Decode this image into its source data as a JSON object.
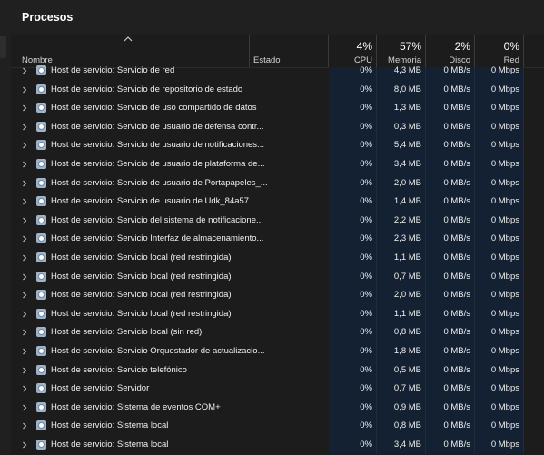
{
  "title": "Procesos",
  "header": {
    "name_label": "Nombre",
    "estado_label": "Estado",
    "cpu": {
      "percent": "4%",
      "label": "CPU"
    },
    "memoria": {
      "percent": "57%",
      "label": "Memoria"
    },
    "disco": {
      "percent": "2%",
      "label": "Disco"
    },
    "red": {
      "percent": "0%",
      "label": "Red"
    }
  },
  "processes": [
    {
      "name": "Host de servicio: Servicio de red",
      "cpu": "0%",
      "mem": "4,3 MB",
      "disk": "0 MB/s",
      "net": "0 Mbps"
    },
    {
      "name": "Host de servicio: Servicio de repositorio de estado",
      "cpu": "0%",
      "mem": "8,0 MB",
      "disk": "0 MB/s",
      "net": "0 Mbps"
    },
    {
      "name": "Host de servicio: Servicio de uso compartido de datos",
      "cpu": "0%",
      "mem": "1,3 MB",
      "disk": "0 MB/s",
      "net": "0 Mbps"
    },
    {
      "name": "Host de servicio: Servicio de usuario de defensa contr...",
      "cpu": "0%",
      "mem": "0,3 MB",
      "disk": "0 MB/s",
      "net": "0 Mbps"
    },
    {
      "name": "Host de servicio: Servicio de usuario de notificaciones...",
      "cpu": "0%",
      "mem": "5,4 MB",
      "disk": "0 MB/s",
      "net": "0 Mbps"
    },
    {
      "name": "Host de servicio: Servicio de usuario de plataforma de...",
      "cpu": "0%",
      "mem": "3,4 MB",
      "disk": "0 MB/s",
      "net": "0 Mbps"
    },
    {
      "name": "Host de servicio: Servicio de usuario de Portapapeles_...",
      "cpu": "0%",
      "mem": "2,0 MB",
      "disk": "0 MB/s",
      "net": "0 Mbps"
    },
    {
      "name": "Host de servicio: Servicio de usuario de Udk_84a57",
      "cpu": "0%",
      "mem": "1,4 MB",
      "disk": "0 MB/s",
      "net": "0 Mbps"
    },
    {
      "name": "Host de servicio: Servicio del sistema de notificacione...",
      "cpu": "0%",
      "mem": "2,2 MB",
      "disk": "0 MB/s",
      "net": "0 Mbps"
    },
    {
      "name": "Host de servicio: Servicio Interfaz de almacenamiento...",
      "cpu": "0%",
      "mem": "2,3 MB",
      "disk": "0 MB/s",
      "net": "0 Mbps"
    },
    {
      "name": "Host de servicio: Servicio local (red restringida)",
      "cpu": "0%",
      "mem": "1,1 MB",
      "disk": "0 MB/s",
      "net": "0 Mbps"
    },
    {
      "name": "Host de servicio: Servicio local (red restringida)",
      "cpu": "0%",
      "mem": "0,7 MB",
      "disk": "0 MB/s",
      "net": "0 Mbps"
    },
    {
      "name": "Host de servicio: Servicio local (red restringida)",
      "cpu": "0%",
      "mem": "2,0 MB",
      "disk": "0 MB/s",
      "net": "0 Mbps"
    },
    {
      "name": "Host de servicio: Servicio local (red restringida)",
      "cpu": "0%",
      "mem": "1,1 MB",
      "disk": "0 MB/s",
      "net": "0 Mbps"
    },
    {
      "name": "Host de servicio: Servicio local (sin red)",
      "cpu": "0%",
      "mem": "0,8 MB",
      "disk": "0 MB/s",
      "net": "0 Mbps"
    },
    {
      "name": "Host de servicio: Servicio Orquestador de actualizacio...",
      "cpu": "0%",
      "mem": "1,8 MB",
      "disk": "0 MB/s",
      "net": "0 Mbps"
    },
    {
      "name": "Host de servicio: Servicio telefónico",
      "cpu": "0%",
      "mem": "0,5 MB",
      "disk": "0 MB/s",
      "net": "0 Mbps"
    },
    {
      "name": "Host de servicio: Servidor",
      "cpu": "0%",
      "mem": "0,7 MB",
      "disk": "0 MB/s",
      "net": "0 Mbps"
    },
    {
      "name": "Host de servicio: Sistema de eventos COM+",
      "cpu": "0%",
      "mem": "0,9 MB",
      "disk": "0 MB/s",
      "net": "0 Mbps"
    },
    {
      "name": "Host de servicio: Sistema local",
      "cpu": "0%",
      "mem": "0,8 MB",
      "disk": "0 MB/s",
      "net": "0 Mbps"
    },
    {
      "name": "Host de servicio: Sistema local",
      "cpu": "0%",
      "mem": "3,4 MB",
      "disk": "0 MB/s",
      "net": "0 Mbps"
    }
  ],
  "icons": {
    "sort": "chevron-up-icon",
    "expand": "chevron-right-icon",
    "process": "service-host-gear-icon"
  },
  "colors": {
    "background": "#1c1c1c",
    "metric_column": "#142132"
  }
}
